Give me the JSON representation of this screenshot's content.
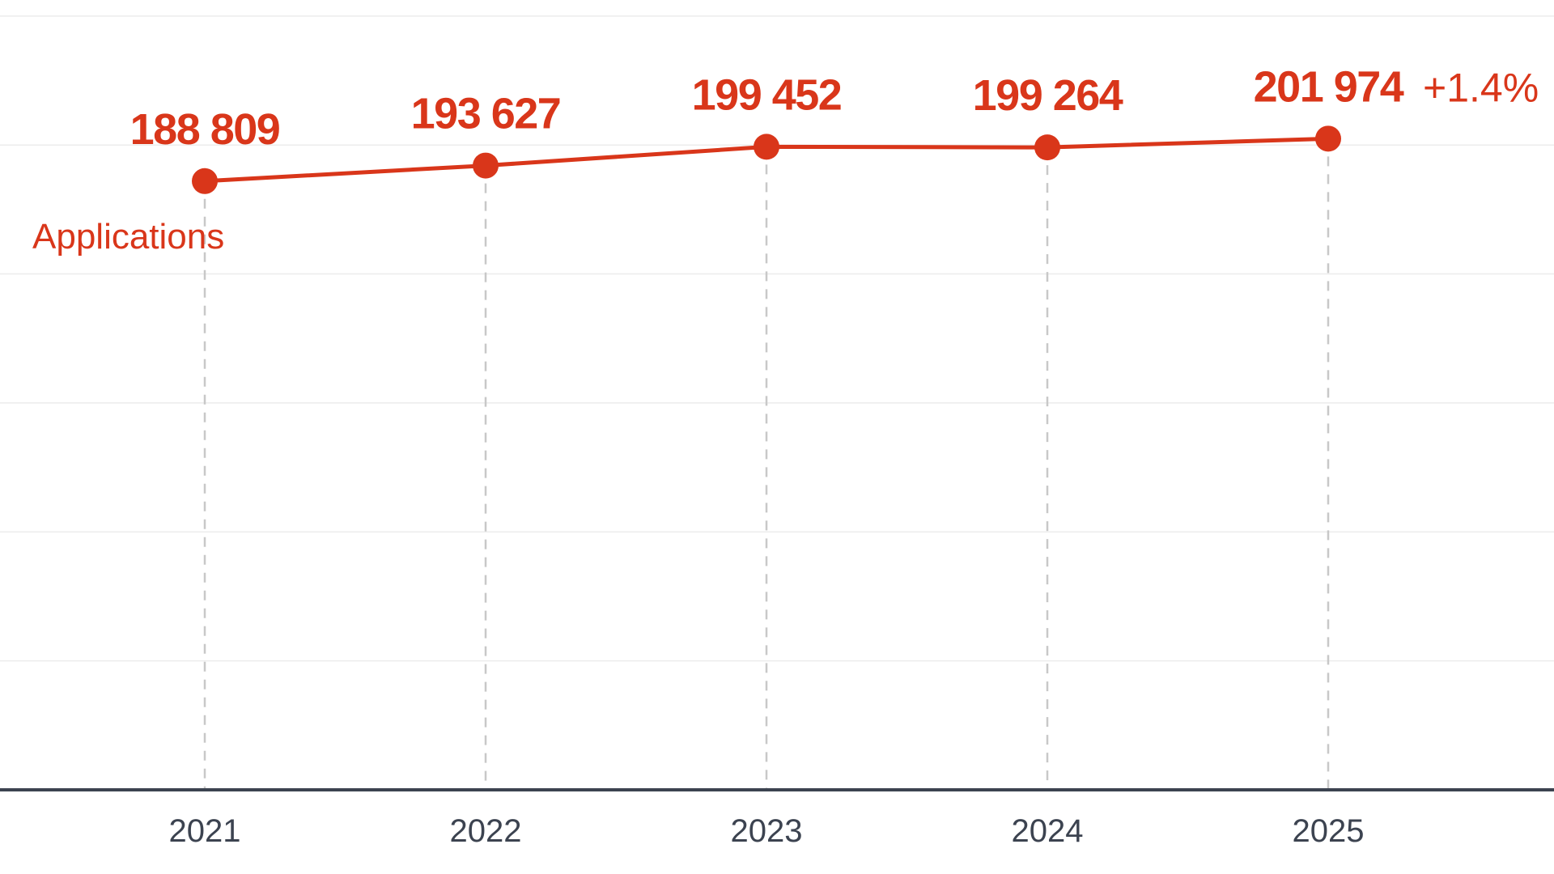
{
  "chart_data": {
    "type": "line",
    "title": "",
    "xlabel": "",
    "ylabel": "",
    "x": [
      "2021",
      "2022",
      "2023",
      "2024",
      "2025"
    ],
    "ylim": [
      0,
      240000
    ],
    "grid": true,
    "series": [
      {
        "name": "Applications",
        "values": [
          188809,
          193627,
          199452,
          199264,
          201974
        ],
        "value_labels": [
          "188 809",
          "193 627",
          "199 452",
          "199 264",
          "201 974"
        ],
        "color": "#d9361a"
      }
    ],
    "annotations": [
      {
        "text": "+1.4%",
        "x": "2025"
      }
    ]
  },
  "colors": {
    "accent": "#d9361a",
    "axis": "#3c4350",
    "gridline": "#ececec",
    "dropline": "#c8c8c8"
  }
}
